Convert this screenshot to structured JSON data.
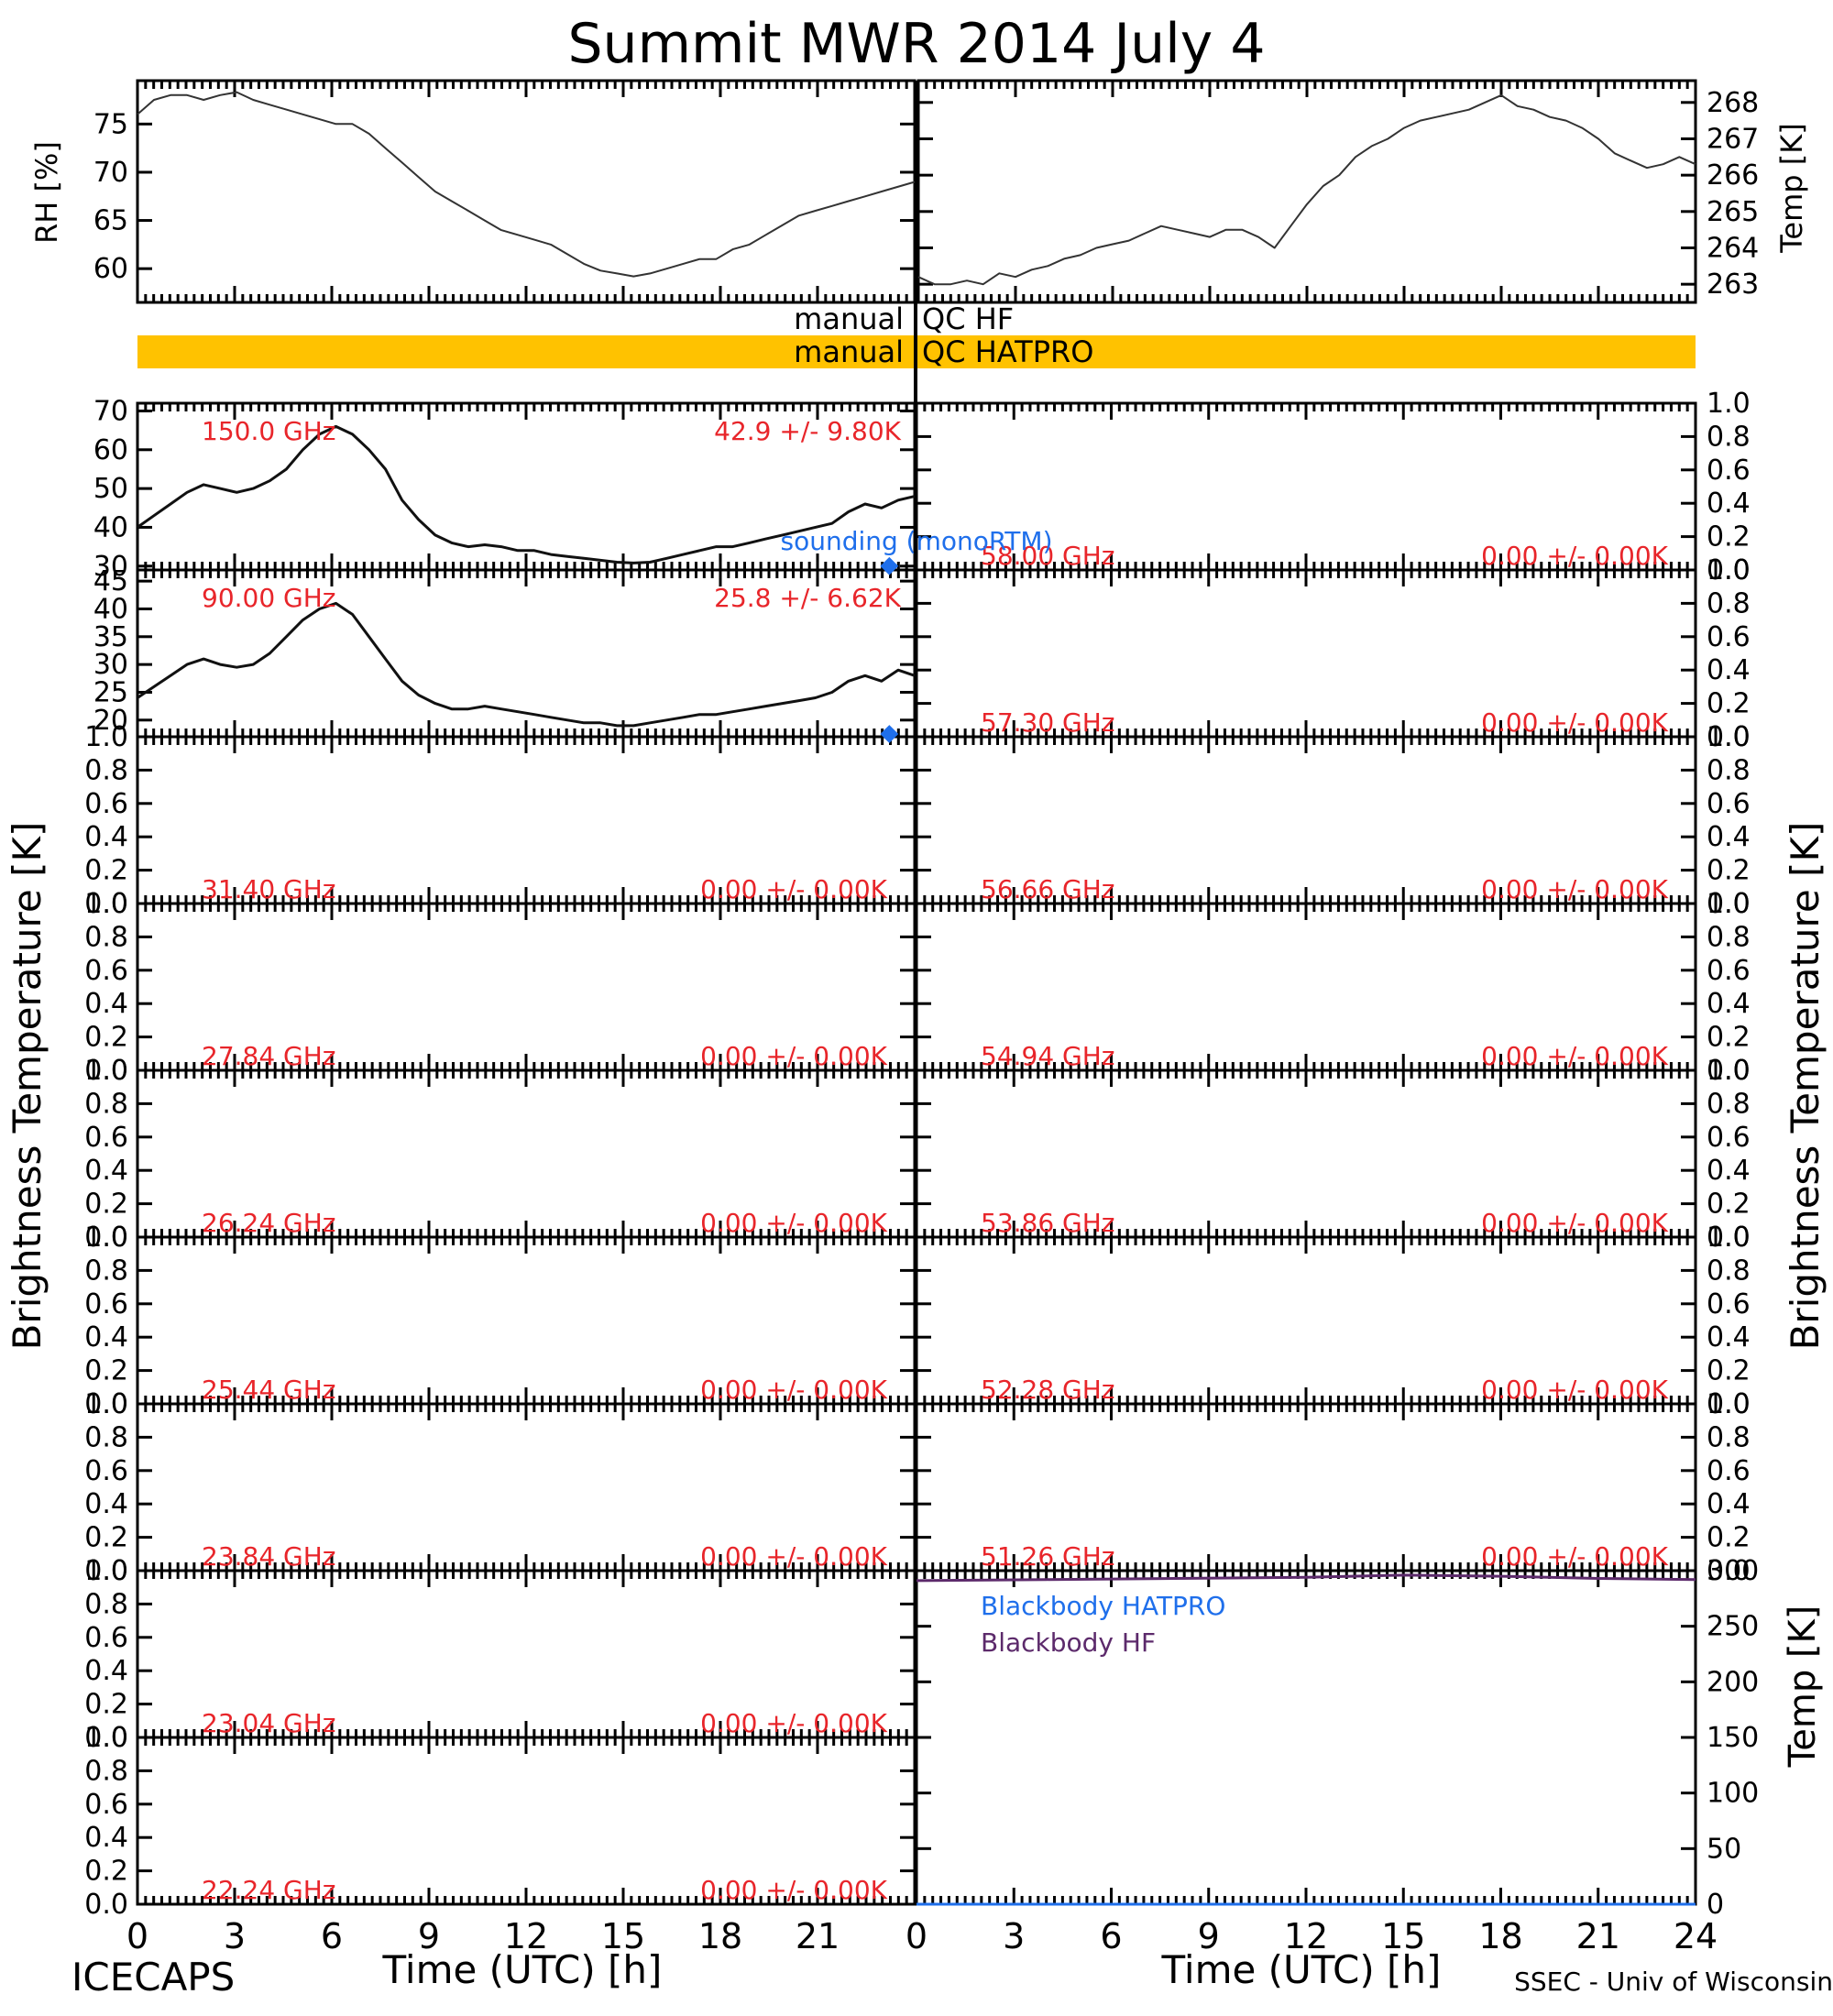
{
  "title": "Summit MWR 2014 July  4",
  "footer": {
    "left": "ICECAPS",
    "right": "SSEC - Univ of Wisconsin"
  },
  "qc": {
    "hf_label_a": "manual",
    "hf_label_b": "QC HF",
    "hatpro_label_a": "manual",
    "hatpro_label_b": "QC HATPRO",
    "hatpro_bar_color": "#FFC200"
  },
  "colors": {
    "stats": "#E8252A",
    "sounding": "#1F6FEB",
    "blackbody_hatpro": "#1F6FEB",
    "blackbody_hf": "#5C2A6B"
  },
  "chart_data": [
    {
      "type": "line",
      "panel": "rh",
      "ylabel": "RH [%]",
      "xlim": [
        0,
        24
      ],
      "ylim": [
        56.5,
        79.5
      ],
      "yticks": [
        "60",
        "65",
        "70",
        "75"
      ],
      "x": [
        0,
        0.5,
        1,
        1.5,
        2,
        2.5,
        3,
        3.5,
        4,
        4.5,
        5,
        5.5,
        6,
        6.5,
        7,
        7.5,
        8,
        8.5,
        9,
        9.5,
        10,
        10.5,
        11,
        11.5,
        12,
        12.5,
        13,
        13.5,
        14,
        14.5,
        15,
        15.5,
        16,
        16.5,
        17,
        17.5,
        18,
        18.5,
        19,
        19.5,
        20,
        20.5,
        21,
        21.5,
        22,
        22.5,
        23.5
      ],
      "values": [
        76,
        77.5,
        78,
        78,
        77.5,
        78,
        78.3,
        77.5,
        77,
        76.5,
        76,
        75.5,
        75,
        75,
        74,
        72.5,
        71,
        69.5,
        68,
        67,
        66,
        65,
        64,
        63.5,
        63,
        62.5,
        61.5,
        60.5,
        59.8,
        59.5,
        59.2,
        59.5,
        60,
        60.5,
        61,
        61,
        62,
        62.5,
        63.5,
        64.5,
        65.5,
        66,
        66.5,
        67,
        67.5,
        68,
        69
      ]
    },
    {
      "type": "line",
      "panel": "temp",
      "ylabel": "Temp [K]",
      "xlim": [
        0,
        24
      ],
      "ylim": [
        262.5,
        268.6
      ],
      "yticks": [
        "263",
        "264",
        "265",
        "266",
        "267",
        "268"
      ],
      "x": [
        0,
        0.5,
        1,
        1.5,
        2,
        2.5,
        3,
        3.5,
        4,
        4.5,
        5,
        5.5,
        6,
        6.5,
        7,
        7.5,
        8,
        8.5,
        9,
        9.5,
        10,
        10.5,
        11,
        11.5,
        12,
        12.5,
        13,
        13.5,
        14,
        14.5,
        15,
        15.5,
        16,
        16.5,
        17,
        17.5,
        18,
        18.5,
        19,
        19.5,
        20,
        20.5,
        21,
        21.5,
        22,
        22.5,
        23,
        23.5,
        24
      ],
      "values": [
        263.2,
        263,
        263,
        263.1,
        263,
        263.3,
        263.2,
        263.4,
        263.5,
        263.7,
        263.8,
        264,
        264.1,
        264.2,
        264.4,
        264.6,
        264.5,
        264.4,
        264.3,
        264.5,
        264.5,
        264.3,
        264,
        264.6,
        265.2,
        265.7,
        266,
        266.5,
        266.8,
        267,
        267.3,
        267.5,
        267.6,
        267.7,
        267.8,
        268,
        268.2,
        267.9,
        267.8,
        267.6,
        267.5,
        267.3,
        267,
        266.6,
        266.4,
        266.2,
        266.3,
        266.5,
        266.3
      ]
    },
    {
      "type": "line",
      "panel": "tb-150",
      "freq": "150.0 GHz",
      "stats": "42.9 +/-  9.80K",
      "xlim": [
        0,
        24
      ],
      "ylim": [
        29,
        72
      ],
      "yticks": [
        "30",
        "40",
        "50",
        "60",
        "70"
      ],
      "annotation": "sounding (monoRTM)",
      "sounding_value": 30,
      "x": [
        0,
        0.5,
        1,
        1.5,
        2,
        2.5,
        3,
        3.5,
        4,
        4.5,
        5,
        5.5,
        6,
        6.5,
        7,
        7.5,
        8,
        8.5,
        9,
        9.5,
        10,
        10.5,
        11,
        11.5,
        12,
        12.5,
        13,
        13.5,
        14,
        14.5,
        15,
        15.5,
        16,
        16.5,
        17,
        17.5,
        18,
        18.5,
        19,
        19.5,
        20,
        20.5,
        21,
        21.5,
        22,
        22.5,
        23,
        23.5
      ],
      "values": [
        40,
        43,
        46,
        49,
        51,
        50,
        49,
        50,
        52,
        55,
        60,
        64,
        66,
        64,
        60,
        55,
        47,
        42,
        38,
        36,
        35,
        35.5,
        35,
        34,
        34,
        33,
        32.5,
        32,
        31.5,
        31,
        30.8,
        31,
        32,
        33,
        34,
        35,
        35,
        36,
        37,
        38,
        39,
        40,
        41,
        44,
        46,
        45,
        47,
        48
      ]
    },
    {
      "type": "line",
      "panel": "tb-90",
      "freq": "90.00 GHz",
      "stats": "25.8 +/-  6.62K",
      "xlim": [
        0,
        24
      ],
      "ylim": [
        17,
        47
      ],
      "yticks": [
        "20",
        "25",
        "30",
        "35",
        "40",
        "45"
      ],
      "sounding_value": 17.5,
      "x": [
        0,
        0.5,
        1,
        1.5,
        2,
        2.5,
        3,
        3.5,
        4,
        4.5,
        5,
        5.5,
        6,
        6.5,
        7,
        7.5,
        8,
        8.5,
        9,
        9.5,
        10,
        10.5,
        11,
        11.5,
        12,
        12.5,
        13,
        13.5,
        14,
        14.5,
        15,
        15.5,
        16,
        16.5,
        17,
        17.5,
        18,
        18.5,
        19,
        19.5,
        20,
        20.5,
        21,
        21.5,
        22,
        22.5,
        23,
        23.5
      ],
      "values": [
        24,
        26,
        28,
        30,
        31,
        30,
        29.5,
        30,
        32,
        35,
        38,
        40,
        41,
        39,
        35,
        31,
        27,
        24.5,
        23,
        22,
        22,
        22.5,
        22,
        21.5,
        21,
        20.5,
        20,
        19.5,
        19.5,
        19,
        19,
        19.5,
        20,
        20.5,
        21,
        21,
        21.5,
        22,
        22.5,
        23,
        23.5,
        24,
        25,
        27,
        28,
        27,
        29,
        28
      ]
    },
    {
      "type": "line",
      "panel": "tb-31.40",
      "freq": "31.40 GHz",
      "stats": "0.00 +/-  0.00K",
      "ylim": [
        0,
        1
      ],
      "yticks": [
        "0.0",
        "0.2",
        "0.4",
        "0.6",
        "0.8",
        "1.0"
      ]
    },
    {
      "type": "line",
      "panel": "tb-27.84",
      "freq": "27.84 GHz",
      "stats": "0.00 +/-  0.00K",
      "ylim": [
        0,
        1
      ],
      "yticks": [
        "0.0",
        "0.2",
        "0.4",
        "0.6",
        "0.8",
        "1.0"
      ]
    },
    {
      "type": "line",
      "panel": "tb-26.24",
      "freq": "26.24 GHz",
      "stats": "0.00 +/-  0.00K",
      "ylim": [
        0,
        1
      ],
      "yticks": [
        "0.0",
        "0.2",
        "0.4",
        "0.6",
        "0.8",
        "1.0"
      ]
    },
    {
      "type": "line",
      "panel": "tb-25.44",
      "freq": "25.44 GHz",
      "stats": "0.00 +/-  0.00K",
      "ylim": [
        0,
        1
      ],
      "yticks": [
        "0.0",
        "0.2",
        "0.4",
        "0.6",
        "0.8",
        "1.0"
      ]
    },
    {
      "type": "line",
      "panel": "tb-23.84",
      "freq": "23.84 GHz",
      "stats": "0.00 +/-  0.00K",
      "ylim": [
        0,
        1
      ],
      "yticks": [
        "0.0",
        "0.2",
        "0.4",
        "0.6",
        "0.8",
        "1.0"
      ]
    },
    {
      "type": "line",
      "panel": "tb-23.04",
      "freq": "23.04 GHz",
      "stats": "0.00 +/-  0.00K",
      "ylim": [
        0,
        1
      ],
      "yticks": [
        "0.0",
        "0.2",
        "0.4",
        "0.6",
        "0.8",
        "1.0"
      ]
    },
    {
      "type": "line",
      "panel": "tb-22.24",
      "freq": "22.24 GHz",
      "stats": "0.00 +/-  0.00K",
      "ylim": [
        0,
        1
      ],
      "yticks": [
        "0.0",
        "0.2",
        "0.4",
        "0.6",
        "0.8",
        "1.0"
      ]
    },
    {
      "type": "line",
      "panel": "tb-58.00",
      "freq": "58.00 GHz",
      "stats": "0.00 +/-  0.00K",
      "ylim": [
        0,
        1
      ],
      "yticks": [
        "0.0",
        "0.2",
        "0.4",
        "0.6",
        "0.8",
        "1.0"
      ]
    },
    {
      "type": "line",
      "panel": "tb-57.30",
      "freq": "57.30 GHz",
      "stats": "0.00 +/-  0.00K",
      "ylim": [
        0,
        1
      ],
      "yticks": [
        "0.0",
        "0.2",
        "0.4",
        "0.6",
        "0.8",
        "1.0"
      ]
    },
    {
      "type": "line",
      "panel": "tb-56.66",
      "freq": "56.66 GHz",
      "stats": "0.00 +/-  0.00K",
      "ylim": [
        0,
        1
      ],
      "yticks": [
        "0.0",
        "0.2",
        "0.4",
        "0.6",
        "0.8",
        "1.0"
      ]
    },
    {
      "type": "line",
      "panel": "tb-54.94",
      "freq": "54.94 GHz",
      "stats": "0.00 +/-  0.00K",
      "ylim": [
        0,
        1
      ],
      "yticks": [
        "0.0",
        "0.2",
        "0.4",
        "0.6",
        "0.8",
        "1.0"
      ]
    },
    {
      "type": "line",
      "panel": "tb-53.86",
      "freq": "53.86 GHz",
      "stats": "0.00 +/-  0.00K",
      "ylim": [
        0,
        1
      ],
      "yticks": [
        "0.0",
        "0.2",
        "0.4",
        "0.6",
        "0.8",
        "1.0"
      ]
    },
    {
      "type": "line",
      "panel": "tb-52.28",
      "freq": "52.28 GHz",
      "stats": "0.00 +/-  0.00K",
      "ylim": [
        0,
        1
      ],
      "yticks": [
        "0.0",
        "0.2",
        "0.4",
        "0.6",
        "0.8",
        "1.0"
      ]
    },
    {
      "type": "line",
      "panel": "tb-51.26",
      "freq": "51.26 GHz",
      "stats": "0.00 +/-  0.00K",
      "ylim": [
        0,
        1
      ],
      "yticks": [
        "0.0",
        "0.2",
        "0.4",
        "0.6",
        "0.8",
        "1.0"
      ]
    },
    {
      "type": "line",
      "panel": "blackbody",
      "ylabel": "Temp [K]",
      "xlim": [
        0,
        24
      ],
      "ylim": [
        0,
        300
      ],
      "yticks": [
        "0",
        "50",
        "100",
        "150",
        "200",
        "250",
        "300"
      ],
      "series": [
        {
          "name": "Blackbody HATPRO",
          "x": [
            0,
            24
          ],
          "values": [
            0,
            0
          ]
        },
        {
          "name": "Blackbody HF",
          "x": [
            0,
            4,
            8,
            12,
            15,
            18,
            21,
            24
          ],
          "values": [
            291,
            292,
            293,
            294,
            296,
            295,
            293,
            292
          ]
        }
      ]
    }
  ],
  "shared_axes": {
    "ylabel_brightness": "Brightness Temperature [K]",
    "xlabel": "Time (UTC) [h]",
    "xticks_left": [
      "0",
      "3",
      "6",
      "9",
      "12",
      "15",
      "18",
      "21"
    ],
    "xticks_right": [
      "0",
      "3",
      "6",
      "9",
      "12",
      "15",
      "18",
      "21",
      "24"
    ]
  }
}
